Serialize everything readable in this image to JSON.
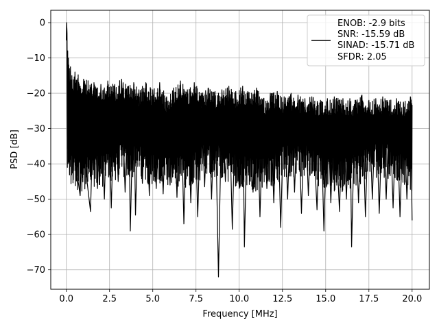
{
  "chart_data": {
    "type": "line",
    "xlabel": "Frequency [MHz]",
    "ylabel": "PSD [dB]",
    "xlim": [
      -0.9,
      21.0
    ],
    "ylim": [
      -75.5,
      3.5
    ],
    "xticks": [
      0.0,
      2.5,
      5.0,
      7.5,
      10.0,
      12.5,
      15.0,
      17.5,
      20.0
    ],
    "xtick_labels": [
      "0.0",
      "2.5",
      "5.0",
      "7.5",
      "10.0",
      "12.5",
      "15.0",
      "17.5",
      "20.0"
    ],
    "yticks": [
      0,
      -10,
      -20,
      -30,
      -40,
      -50,
      -60,
      -70
    ],
    "ytick_labels": [
      "0",
      "−10",
      "−20",
      "−30",
      "−40",
      "−50",
      "−60",
      "−70"
    ],
    "grid": true,
    "legend_position": "top-right",
    "legend_lines": [
      "ENOB: -2.9 bits",
      "SNR: -15.59 dB",
      "SINAD: -15.71 dB",
      "SFDR: 2.05"
    ],
    "series": [
      {
        "color": "#000000",
        "points": [
          [
            0.0,
            -5.0
          ],
          [
            0.02,
            0.0
          ],
          [
            0.04,
            -3.0
          ],
          [
            0.06,
            -41.0
          ],
          [
            0.08,
            -8.0
          ],
          [
            0.1,
            -35.0
          ],
          [
            0.12,
            -10.0
          ],
          [
            0.15,
            -38.0
          ],
          [
            0.18,
            -13.0
          ],
          [
            0.2,
            -36.0
          ],
          [
            0.24,
            -12.5
          ],
          [
            0.28,
            -40.0
          ],
          [
            0.32,
            -15.0
          ],
          [
            0.4,
            -44.5
          ],
          [
            0.5,
            -14.0
          ],
          [
            0.6,
            -42.0
          ],
          [
            0.8,
            -49.0
          ],
          [
            1.0,
            -16.0
          ],
          [
            1.2,
            -45.0
          ],
          [
            1.4,
            -53.5
          ],
          [
            1.6,
            -17.0
          ],
          [
            1.8,
            -47.0
          ],
          [
            2.0,
            -17.5
          ],
          [
            2.2,
            -50.0
          ],
          [
            2.4,
            -16.5
          ],
          [
            2.6,
            -52.5
          ],
          [
            2.8,
            -17.5
          ],
          [
            3.0,
            -45.0
          ],
          [
            3.2,
            -16.0
          ],
          [
            3.4,
            -48.0
          ],
          [
            3.6,
            -18.0
          ],
          [
            3.7,
            -59.0
          ],
          [
            3.9,
            -17.0
          ],
          [
            4.0,
            -54.5
          ],
          [
            4.2,
            -19.0
          ],
          [
            4.4,
            -45.5
          ],
          [
            4.6,
            -17.0
          ],
          [
            4.8,
            -49.0
          ],
          [
            5.0,
            -19.0
          ],
          [
            5.2,
            -47.0
          ],
          [
            5.4,
            -17.0
          ],
          [
            5.6,
            -48.5
          ],
          [
            5.8,
            -21.0
          ],
          [
            6.0,
            -46.0
          ],
          [
            6.2,
            -18.5
          ],
          [
            6.4,
            -49.5
          ],
          [
            6.6,
            -16.5
          ],
          [
            6.8,
            -57.0
          ],
          [
            7.0,
            -19.0
          ],
          [
            7.2,
            -51.0
          ],
          [
            7.4,
            -17.0
          ],
          [
            7.6,
            -55.0
          ],
          [
            7.8,
            -20.0
          ],
          [
            8.0,
            -46.5
          ],
          [
            8.2,
            -18.5
          ],
          [
            8.4,
            -50.0
          ],
          [
            8.6,
            -19.5
          ],
          [
            8.8,
            -72.0
          ],
          [
            9.0,
            -19.0
          ],
          [
            9.2,
            -45.0
          ],
          [
            9.4,
            -18.0
          ],
          [
            9.6,
            -58.5
          ],
          [
            9.8,
            -19.5
          ],
          [
            10.0,
            -47.0
          ],
          [
            10.2,
            -18.0
          ],
          [
            10.3,
            -63.5
          ],
          [
            10.5,
            -19.5
          ],
          [
            10.8,
            -48.0
          ],
          [
            11.0,
            -18.5
          ],
          [
            11.2,
            -55.0
          ],
          [
            11.4,
            -21.5
          ],
          [
            11.6,
            -47.0
          ],
          [
            11.8,
            -20.0
          ],
          [
            12.0,
            -51.0
          ],
          [
            12.2,
            -19.5
          ],
          [
            12.4,
            -58.0
          ],
          [
            12.6,
            -21.0
          ],
          [
            12.8,
            -50.0
          ],
          [
            13.0,
            -20.0
          ],
          [
            13.2,
            -48.0
          ],
          [
            13.4,
            -20.5
          ],
          [
            13.6,
            -54.0
          ],
          [
            13.8,
            -21.5
          ],
          [
            14.0,
            -49.0
          ],
          [
            14.2,
            -21.0
          ],
          [
            14.5,
            -53.0
          ],
          [
            14.7,
            -22.0
          ],
          [
            14.9,
            -59.0
          ],
          [
            15.1,
            -21.5
          ],
          [
            15.3,
            -51.0
          ],
          [
            15.5,
            -21.0
          ],
          [
            15.8,
            -53.5
          ],
          [
            16.0,
            -21.5
          ],
          [
            16.2,
            -50.0
          ],
          [
            16.4,
            -21.5
          ],
          [
            16.5,
            -63.5
          ],
          [
            16.7,
            -22.0
          ],
          [
            16.9,
            -51.0
          ],
          [
            17.1,
            -20.5
          ],
          [
            17.3,
            -55.0
          ],
          [
            17.5,
            -22.0
          ],
          [
            17.7,
            -50.0
          ],
          [
            17.9,
            -21.5
          ],
          [
            18.1,
            -54.0
          ],
          [
            18.3,
            -21.0
          ],
          [
            18.5,
            -50.0
          ],
          [
            18.7,
            -22.0
          ],
          [
            18.9,
            -52.5
          ],
          [
            19.1,
            -21.5
          ],
          [
            19.3,
            -55.0
          ],
          [
            19.5,
            -22.5
          ],
          [
            19.7,
            -50.0
          ],
          [
            19.9,
            -21.0
          ],
          [
            20.0,
            -56.0
          ]
        ]
      }
    ]
  }
}
